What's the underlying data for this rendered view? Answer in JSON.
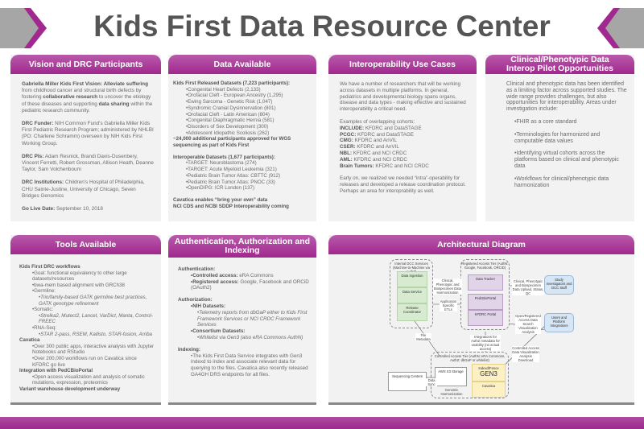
{
  "title": "Kids First Data Resource Center",
  "colors": {
    "accent": "#a0288e",
    "panel": "#f2f2f2",
    "chevron_gray": "#a6a6a6"
  },
  "vision": {
    "header": "Vision and DRC Participants",
    "p1_b1": "Gabriella Miller Kids First Vision: Alleviate suffering",
    "p1_t1": " from childhood cancer and structural birth defects by fostering ",
    "p1_b2": "collaborative research",
    "p1_t2": " to uncover the etiology of these diseases and supporting ",
    "p1_b3": "data sharing",
    "p1_t3": " within the pediatric research community.",
    "funder_label": "DRC Funder:",
    "funder": " NIH Common Fund's Gabriella Miller Kids First Pediatric Research Program; administered by NHLBI (PO: Charlene Schramm) overseen by NIH Kids First Working Group.",
    "pis_label": "DRC PIs:",
    "pis": " Adam Resnick, Brandi Davis-Dusenbery, Vincent Ferretti, Robert Grossman, Allison Heath, Deanne Taylor, Sam Volchenboum",
    "inst_label": "DRC Institutions:",
    "inst": " Children's Hospital of Philadelphia, CHU Sainte-Justine, University of Chicago, Seven Bridges Genomics",
    "golive_label": "Go Live Date:",
    "golive": " September 10, 2018"
  },
  "data": {
    "header": "Data Available",
    "released_title": "Kids First Released Datasets (7,223 participants):",
    "released": [
      "•Congenital Heart Defects (2,133)",
      "•Orofacial Cleft - European Ancestry (1,295)",
      "•Ewing Sarcoma - Genetic Risk (1,047)",
      "•Syndromic Cranial Dysinnervation (801)",
      "•Orofacial Cleft - Latin American  (804)",
      "•Congenital Diaphragmatic Hernia (581)",
      "•Disorders of Sex Development (300)",
      "•Adolescent Idiopathic Scoliosis (262)"
    ],
    "additional": "~24,000 additional participants approved for WGS sequencing as part of Kids First",
    "interop_title": "Interoperable Datasets (1,677 participants):",
    "interop": [
      "•TARGET: Neuroblastoma (274)",
      "•TARGET: Acute Myeloid Leukemia (321)",
      "•Pediatric Brain Tumor Atlas: CBTTC (912)",
      "•Pediatric Brain Tumor Atlas: PNOC (33)",
      "•OpenDIPG: ICR London (137)"
    ],
    "footer1": "Cavatica enables “bring your own” data",
    "footer2": "NCI CDS and NCBI SDDP Interoperability coming"
  },
  "usecases": {
    "header": "Interoperability Use Cases",
    "intro": "We have a number of researchers that will be working across datasets in multiple platforms. In general, pediatrics and developmental biology spans organs, disease and data types - making effective and sustained interoperability a critical need.",
    "examples": "Examples of overlapping cohorts:",
    "cohorts": [
      {
        "k": "INCLUDE:",
        "v": " KFDRC and DataSTAGE"
      },
      {
        "k": "PCGC:",
        "v": " KFDRC and DataSTAGE"
      },
      {
        "k": "CMG:",
        "v": " KFDRC and AnVIL"
      },
      {
        "k": "CSER:",
        "v": " KFDRC and AnVIL"
      },
      {
        "k": "NBL:",
        "v": " KFDRC and NCI CRDC"
      },
      {
        "k": "AML:",
        "v": " KFDRC and NCI CRDC"
      },
      {
        "k": "Brain Tumors:",
        "v": " KFDRC and NCI CRDC"
      }
    ],
    "outro": "Early on, we realized we needed “intra”-operability for releases and developed a release coordination protocol. Perhaps an area for interoprability as well."
  },
  "clinical": {
    "header": "Clinical/Phenotypic Data Interop Pilot Opportunities",
    "intro": "Clinical and phenotypic data has been identified as a limiting factor across supported studies. The wide range provides challenges, but also opportunities for interoperability. Areas under investigation include:",
    "items": [
      "•FHIR as a core standard",
      "•Terminologies for harmonized and computable data values",
      "•Identifying virtual cohorts across the platforms based on clinical and phenotypic data",
      "•Workflows for clinical/phenotypic data harmonization"
    ]
  },
  "tools": {
    "header": "Tools Available",
    "h1": "Kids First DRC workflows",
    "goal": "•Goal: functional equivalency to other large datasets/resources",
    "bwa": "•bwa-mem based alignment with GRCh38",
    "germline": "•Germline:",
    "germline_d": "•Trio/family-based GATK germline best practices, GATK genotype refinement",
    "somatic": "•Somatic:",
    "somatic_d": "•Strelka2, Mutect2, Lancet, VarDict, Manta, Control-FREEC",
    "rna": "•RNA-Seq:",
    "rna_d": "•STAR 2-pass, RSEM, Kallisto, STAR-fusion, Arriba",
    "h2": "Cavatica",
    "cav1": "•Over 300 public apps, interactive analysis with Jupyter Notebooks and RStudio",
    "cav2": "•Over 200,000 workflows run on Cavatica since KFDRC go live",
    "h3": "Integration with PedCBioPortal",
    "ped1": "•Open access visualization and analysis of somatic mutations, expression, proteomics",
    "h4": "Variant warehouse development underway"
  },
  "auth": {
    "header": "Authentication, Authorization and Indexing",
    "h1": "Authentication:",
    "ca_k": "•Controlled access:",
    "ca_v": " eRA Commons",
    "ra_k": "•Registered access:",
    "ra_v": " Google, Facebook and ORCiD (OAuth2)",
    "h2": "Authorization:",
    "nih": "•NIH Datasets:",
    "nih_d": "•Telemetry reports from dbGaP either to Kids First Framework Services or NCI CRDC Framework Services",
    "cons": "•Consortium Datasets:",
    "cons_d": "•Whitelist via Gen3 (also eRA Commons AuthN)",
    "h3": "Indexing:",
    "idx": "•The Kids First Data Service integrates with Gen3 indexd to index and associate relevant data for querying to the files. Cavatica also recently released GA4GH DRS endpoints for all files."
  },
  "diagram": {
    "header": "Architectural Diagram",
    "internal_title": "Internal DCC Services (Machine-to-Machine via AuthZ)",
    "ingestion": "Data Ingestion",
    "service": "Data Service",
    "release": "Release Coordinator",
    "registered_title": "Registered Access Tier (AuthN: Google, Facebook, ORCID)",
    "tracker": "Data Tracker",
    "pedcbio": "PedcBioPortal",
    "kfportal": "KFDRC Portal",
    "study": "Study Investigators and DCC Staff",
    "users": "Users and Platform Integrations",
    "controlled_title": "Controlled Access Tier (AuthN: eRA Commons, AuthZ: dbGaP or whitelist)",
    "s3": "AWS S3 Storage",
    "genomic": "Genomic Harmonization",
    "indexd": "Indexd/Fence",
    "gen3": "GEN3",
    "cavatica": "Cavatica",
    "sequencing": "Sequencing Centers",
    "e_clin": "Clinical, Phenotypic and Biospecimen Data Harmonization",
    "e_etl": "Application Specific ETLs",
    "e_upload": "Clinical, Phenotypic and Biospecimen Data Upload, Status, QC",
    "e_open": "Open/Registered Access Data Search Visualization Analysis",
    "e_integ": "Integrations for AuthZ metadata for usability (no actual access)",
    "e_ctrl": "Controlled Access Data Visualization Analysis Download",
    "e_file": "File Metadata",
    "e_sync": "Data Sync"
  }
}
